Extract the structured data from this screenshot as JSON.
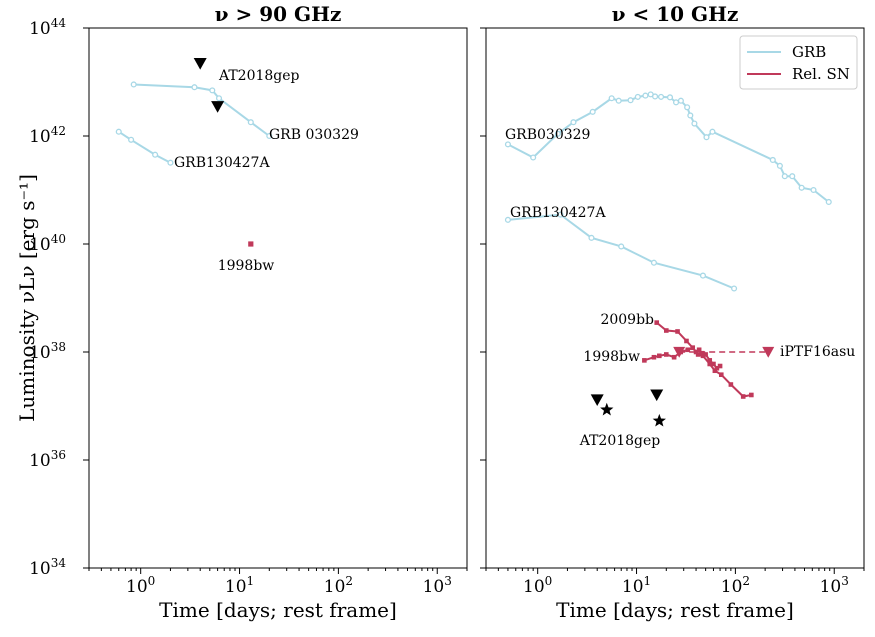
{
  "colors": {
    "grb": "#a8d8e6",
    "sn": "#c0395a",
    "marker": "#000000"
  },
  "ylabel_text": "Luminosity νLν [erg s⁻¹]",
  "chart_data": [
    {
      "type": "line",
      "title": "ν > 90 GHz",
      "xlabel": "Time [days; rest frame]",
      "ylabel": "Luminosity νLν [erg s⁻¹]",
      "xscale": "log",
      "yscale": "log",
      "xlim": [
        0.3,
        2000
      ],
      "ylim": [
        1e+34,
        1e+44
      ],
      "x_ticks": [
        {
          "base": "10",
          "exp": "0"
        },
        {
          "base": "10",
          "exp": "1"
        },
        {
          "base": "10",
          "exp": "2"
        },
        {
          "base": "10",
          "exp": "3"
        }
      ],
      "y_ticks": [
        {
          "base": "10",
          "exp": "34"
        },
        {
          "base": "10",
          "exp": "36"
        },
        {
          "base": "10",
          "exp": "38"
        },
        {
          "base": "10",
          "exp": "40"
        },
        {
          "base": "10",
          "exp": "42"
        },
        {
          "base": "10",
          "exp": "44"
        }
      ],
      "series": [
        {
          "name": "GRB 030329",
          "kind": "grb",
          "x": [
            0.85,
            3.5,
            5.3,
            6.2,
            13.0,
            20.0
          ],
          "y": [
            9e+42,
            8e+42,
            7e+42,
            5e+42,
            1.8e+42,
            1e+42
          ]
        },
        {
          "name": "GRB130427A",
          "kind": "grb",
          "x": [
            0.6,
            0.8,
            1.4,
            2.0
          ],
          "y": [
            1.2e+42,
            8.5e+41,
            4.5e+41,
            3.2e+41
          ]
        },
        {
          "name": "1998bw",
          "kind": "sn_point",
          "x": [
            13.0
          ],
          "y": [
            1e+40
          ]
        },
        {
          "name": "AT2018gep",
          "kind": "upper_limit",
          "x": [
            4.0,
            6.0
          ],
          "y": [
            2.2e+43,
            3.5e+42
          ]
        }
      ],
      "annotations": [
        "AT2018gep",
        "GRB 030329",
        "GRB130427A",
        "1998bw"
      ]
    },
    {
      "type": "line",
      "title": "ν < 10 GHz",
      "xlabel": "Time [days; rest frame]",
      "xscale": "log",
      "yscale": "log",
      "xlim": [
        0.3,
        2000
      ],
      "ylim": [
        1e+34,
        1e+44
      ],
      "x_ticks": [
        {
          "base": "10",
          "exp": "0"
        },
        {
          "base": "10",
          "exp": "1"
        },
        {
          "base": "10",
          "exp": "2"
        },
        {
          "base": "10",
          "exp": "3"
        }
      ],
      "legend": {
        "position": "top-right",
        "entries": [
          "GRB",
          "Rel. SN"
        ]
      },
      "series": [
        {
          "name": "GRB030329",
          "kind": "grb",
          "x": [
            0.5,
            0.9,
            1.6,
            2.3,
            3.6,
            5.6,
            6.6,
            8.7,
            10.3,
            12.3,
            13.9,
            15.4,
            17.7,
            21.8,
            25.1,
            28.1,
            32.5,
            35.0,
            38.5,
            51.0,
            58.6,
            239,
            282,
            316,
            376,
            468,
            617,
            880
          ],
          "y": [
            7e+41,
            4e+41,
            1.1e+42,
            1.8e+42,
            2.8e+42,
            5e+42,
            4.5e+42,
            4.6e+42,
            5.3e+42,
            5.6e+42,
            5.9e+42,
            5.4e+42,
            5.3e+42,
            5.2e+42,
            4.2e+42,
            4.5e+42,
            3.4e+42,
            2.4e+42,
            1.7e+42,
            9.5e+41,
            1.2e+42,
            3.6e+41,
            2.8e+41,
            1.8e+41,
            1.8e+41,
            1.1e+41,
            1e+41,
            6e+40
          ]
        },
        {
          "name": "GRB130427A",
          "kind": "grb",
          "x": [
            0.5,
            1.7,
            3.5,
            7.0,
            15.0,
            47.0,
            97.0
          ],
          "y": [
            2.8e+40,
            3.5e+40,
            1.3e+40,
            9e+39,
            4.5e+39,
            2.6e+39,
            1.5e+39
          ]
        },
        {
          "name": "2009bb",
          "kind": "sn",
          "x": [
            16.0,
            20.0,
            26.0,
            32.0,
            37.0,
            42.0,
            47.0,
            55.0,
            62.0,
            72.0,
            90.0,
            120.0,
            145.0
          ],
          "y": [
            3.5e+38,
            2.5e+38,
            2.4e+38,
            1.6e+38,
            1.2e+38,
            9e+37,
            8.5e+37,
            6e+37,
            4.5e+37,
            3.8e+37,
            2.5e+37,
            1.5e+37,
            1.6e+37
          ]
        },
        {
          "name": "1998bw",
          "kind": "sn",
          "x": [
            12.0,
            15.0,
            17.0,
            20.0,
            24.0,
            28.0,
            33.0,
            37.0,
            40.0,
            43.0,
            46.0,
            50.0,
            55.0,
            60.0,
            65.0,
            70.0
          ],
          "y": [
            7e+37,
            8e+37,
            8.5e+37,
            9e+37,
            8e+37,
            1e+38,
            1.1e+38,
            1.2e+38,
            1e+38,
            1.1e+38,
            9.5e+37,
            9e+37,
            7e+37,
            6e+37,
            5e+37,
            5.5e+37
          ]
        },
        {
          "name": "iPTF16asu",
          "kind": "sn_limit",
          "x": [
            27.0,
            215.0
          ],
          "y": [
            1e+38,
            1e+38
          ]
        },
        {
          "name": "AT2018gep",
          "kind": "limit_star",
          "limit_x": [
            4.0,
            16.0
          ],
          "limit_y": [
            1.3e+37,
            1.6e+37
          ],
          "star_x": [
            5.0,
            17.0
          ],
          "star_y": [
            8.5e+36,
            5.3e+36
          ]
        }
      ],
      "annotations": [
        "GRB030329",
        "GRB130427A",
        "2009bb",
        "1998bw",
        "iPTF16asu",
        "AT2018gep"
      ]
    }
  ]
}
